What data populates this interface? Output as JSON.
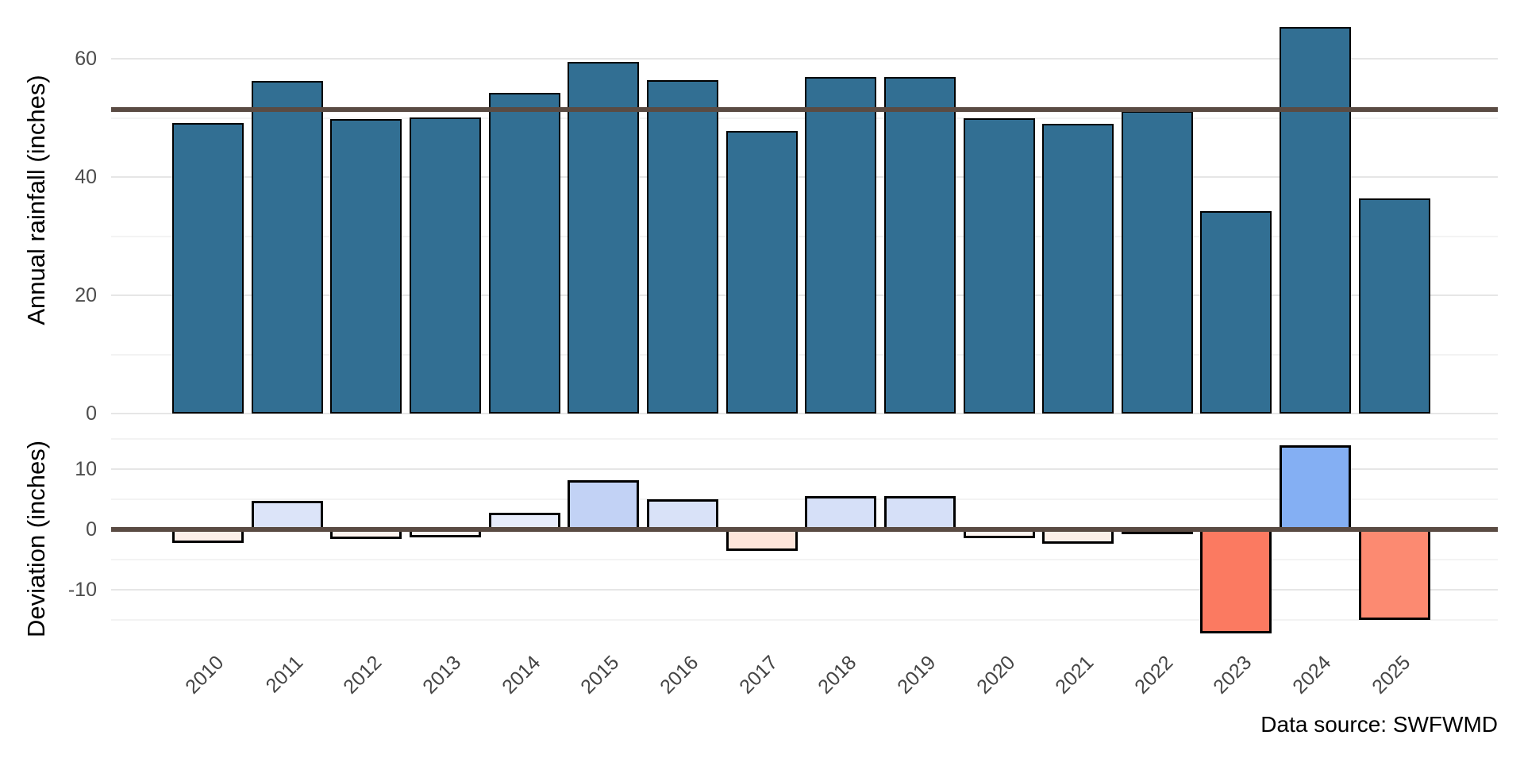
{
  "figure": {
    "caption": "Data source: SWFWMD",
    "background": "#ffffff"
  },
  "chart_data": {
    "type": "bar",
    "title": "",
    "xlabel": "",
    "legend": "none",
    "grid": "on",
    "categories": [
      "2010",
      "2011",
      "2012",
      "2013",
      "2014",
      "2015",
      "2016",
      "2017",
      "2018",
      "2019",
      "2020",
      "2021",
      "2022",
      "2023",
      "2024",
      "2025"
    ],
    "series": [
      {
        "name": "Annual rainfall (inches)",
        "values": [
          49.1,
          56.2,
          49.8,
          50.1,
          54.2,
          59.5,
          56.4,
          47.8,
          56.9,
          56.9,
          50.0,
          49.0,
          51.1,
          34.2,
          65.4,
          36.4
        ]
      },
      {
        "name": "Deviation (inches)",
        "values": [
          -2.3,
          4.8,
          -1.6,
          -1.3,
          2.8,
          8.1,
          5.0,
          -3.6,
          5.5,
          5.5,
          -1.4,
          -2.4,
          -0.3,
          -17.2,
          14.0,
          -15.0
        ]
      }
    ],
    "mean_line_value": 51.4,
    "reference_line_color": "#5a4b43",
    "bar_outline_color": "#000000",
    "rainfall_bar_color": "#326f93",
    "deviation_bar_colors": [
      "#fcefe9",
      "#dce4f9",
      "#fdf4ef",
      "#fdf6f2",
      "#e7ecfb",
      "#c2d2f5",
      "#d9e2f8",
      "#fde5da",
      "#d6e0f8",
      "#d6e0f8",
      "#fdf5f0",
      "#fcefe8",
      "#fefbfa",
      "#fb7a61",
      "#84aff3",
      "#fc8a71"
    ],
    "panels": [
      {
        "ylabel": "Annual rainfall (inches)",
        "yticks": [
          60,
          40,
          20,
          0
        ],
        "yticks_minor": [
          50,
          30,
          10
        ],
        "ylim": [
          0,
          68.7
        ]
      },
      {
        "ylabel": "Deviation (inches)",
        "yticks": [
          10,
          0,
          -10
        ],
        "yticks_minor": [
          15,
          5,
          -5,
          -15
        ],
        "ylim": [
          -18.8,
          15.6
        ]
      }
    ]
  }
}
